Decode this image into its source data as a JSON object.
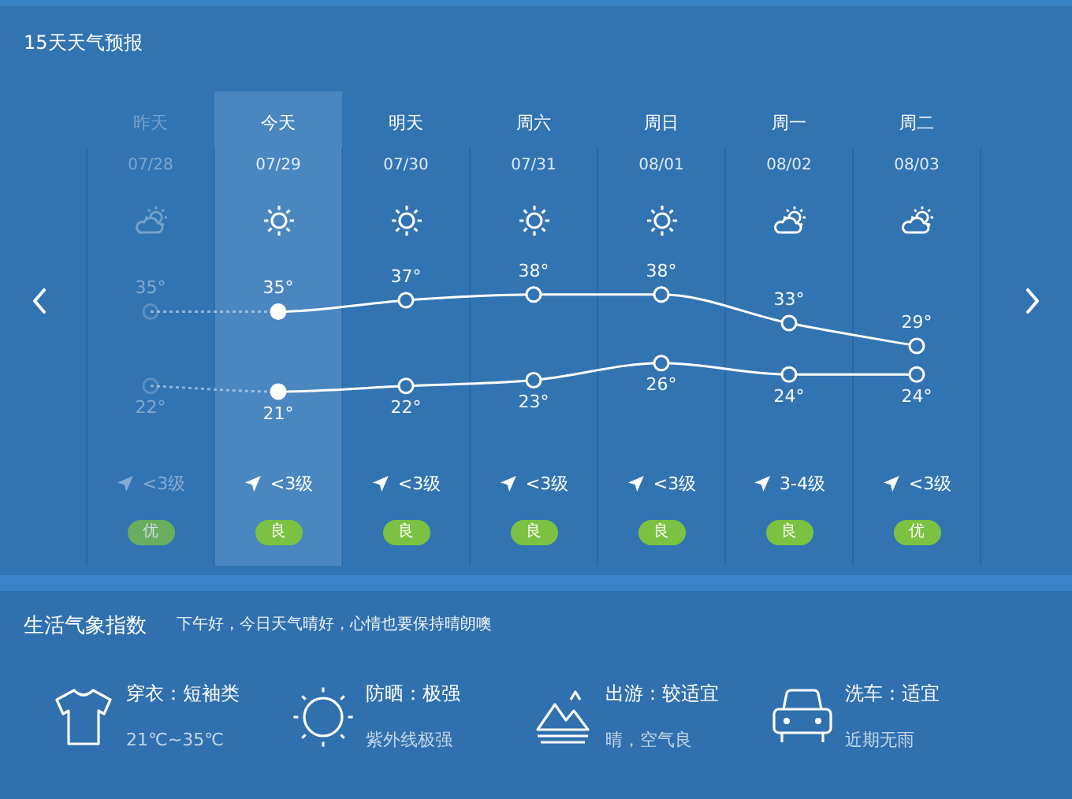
{
  "chart_data": {
    "type": "line",
    "title": "15天天气预报",
    "categories": [
      "昨天",
      "今天",
      "明天",
      "周六",
      "周日",
      "周一",
      "周二"
    ],
    "series": [
      {
        "color": "#ffffff",
        "values": [
          35,
          35,
          37,
          38,
          38,
          33,
          29
        ],
        "value_labels": [
          "35°",
          "35°",
          "37°",
          "38°",
          "38°",
          "33°",
          "29°"
        ]
      },
      {
        "color": "#ffffff",
        "values": [
          22,
          21,
          22,
          23,
          26,
          24,
          24
        ],
        "value_labels": [
          "22°",
          "21°",
          "22°",
          "23°",
          "26°",
          "24°",
          "24°"
        ]
      }
    ],
    "marker": "circle",
    "line_style": "solid",
    "grid": "x",
    "bands": [
      {
        "axis": "x",
        "from": "今天",
        "to": "今天",
        "color": "#4a86c0"
      }
    ],
    "annotations": [
      "07/28",
      "07/29",
      "07/30",
      "07/31",
      "08/01",
      "08/02",
      "08/03",
      "<3级",
      "<3级",
      "<3级",
      "<3级",
      "<3级",
      "3-4级",
      "<3级",
      "优",
      "良",
      "良",
      "良",
      "良",
      "良",
      "优",
      "生活气象指数",
      "下午好，今日天气晴好，心情也要保持晴朗噢",
      "穿衣：短袖类",
      "21℃~35℃",
      "防晒：极强",
      "紫外线极强",
      "出游：较适宜",
      "晴，空气良",
      "洗车：适宜",
      "近期无雨"
    ]
  }
}
